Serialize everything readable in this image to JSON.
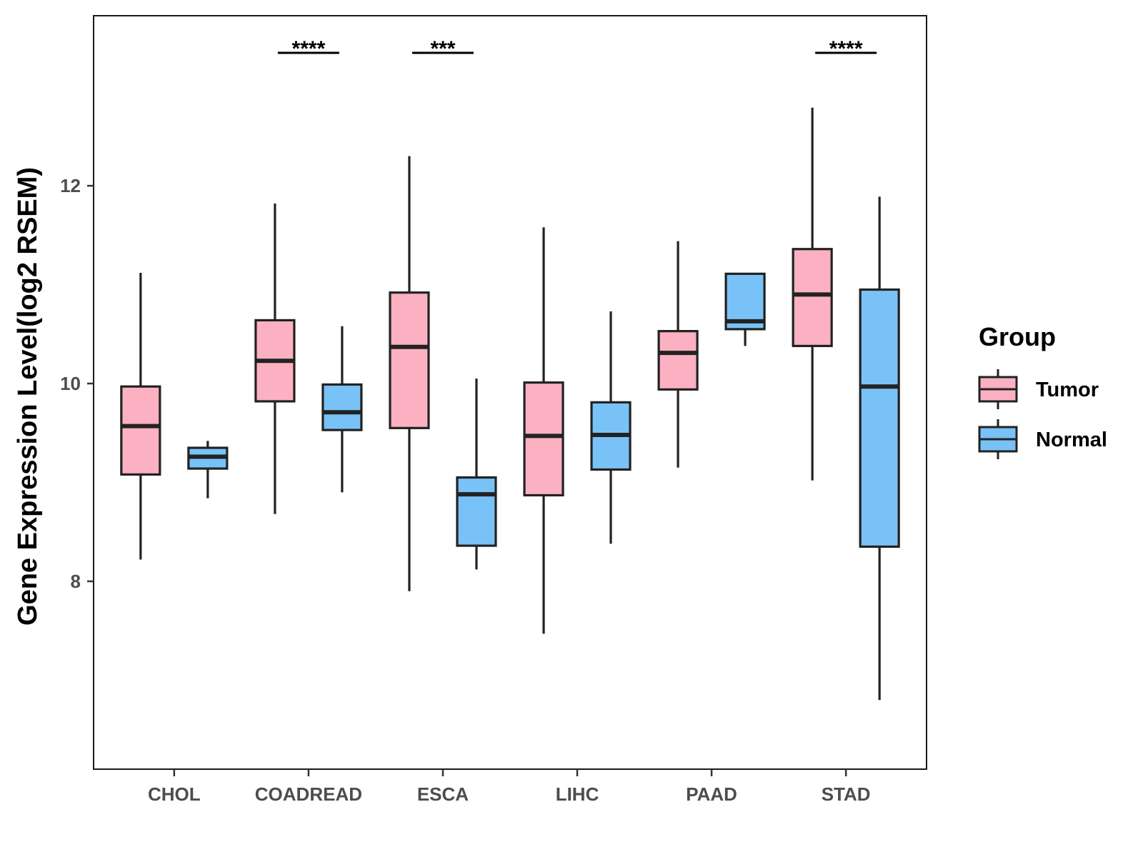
{
  "chart_data": {
    "type": "boxplot",
    "ylabel": "Gene Expression Level(log2 RSEM)",
    "xlabel": "",
    "ylim": [
      6.1,
      13.72
    ],
    "yticks": [
      8,
      10,
      12
    ],
    "grid": false,
    "legend": {
      "title": "Group",
      "position": "right",
      "entries": [
        {
          "name": "Tumor",
          "color": "#FBB1C2"
        },
        {
          "name": "Normal",
          "color": "#79C2F7"
        }
      ]
    },
    "categories": [
      "CHOL",
      "COADREAD",
      "ESCA",
      "LIHC",
      "PAAD",
      "STAD"
    ],
    "series": [
      {
        "name": "Tumor",
        "color": "#FBB1C2",
        "boxes": [
          {
            "whisker_low": 8.22,
            "q1": 9.08,
            "median": 9.57,
            "q3": 9.97,
            "whisker_high": 11.12
          },
          {
            "whisker_low": 8.68,
            "q1": 9.82,
            "median": 10.23,
            "q3": 10.64,
            "whisker_high": 11.82
          },
          {
            "whisker_low": 7.9,
            "q1": 9.55,
            "median": 10.37,
            "q3": 10.92,
            "whisker_high": 12.3
          },
          {
            "whisker_low": 7.47,
            "q1": 8.87,
            "median": 9.47,
            "q3": 10.01,
            "whisker_high": 11.58
          },
          {
            "whisker_low": 9.15,
            "q1": 9.94,
            "median": 10.31,
            "q3": 10.53,
            "whisker_high": 11.44
          },
          {
            "whisker_low": 9.02,
            "q1": 10.38,
            "median": 10.9,
            "q3": 11.36,
            "whisker_high": 12.79
          }
        ]
      },
      {
        "name": "Normal",
        "color": "#79C2F7",
        "boxes": [
          {
            "whisker_low": 8.84,
            "q1": 9.14,
            "median": 9.26,
            "q3": 9.35,
            "whisker_high": 9.42
          },
          {
            "whisker_low": 8.9,
            "q1": 9.53,
            "median": 9.71,
            "q3": 9.99,
            "whisker_high": 10.58
          },
          {
            "whisker_low": 8.12,
            "q1": 8.36,
            "median": 8.88,
            "q3": 9.05,
            "whisker_high": 10.05
          },
          {
            "whisker_low": 8.38,
            "q1": 9.13,
            "median": 9.48,
            "q3": 9.81,
            "whisker_high": 10.73
          },
          {
            "whisker_low": 10.38,
            "q1": 10.55,
            "median": 10.63,
            "q3": 11.11,
            "whisker_high": 11.11
          },
          {
            "whisker_low": 6.8,
            "q1": 8.35,
            "median": 9.97,
            "q3": 10.95,
            "whisker_high": 11.89
          }
        ]
      }
    ],
    "significance": [
      {
        "category": "COADREAD",
        "label": "****"
      },
      {
        "category": "ESCA",
        "label": "***"
      },
      {
        "category": "STAD",
        "label": "****"
      }
    ]
  }
}
